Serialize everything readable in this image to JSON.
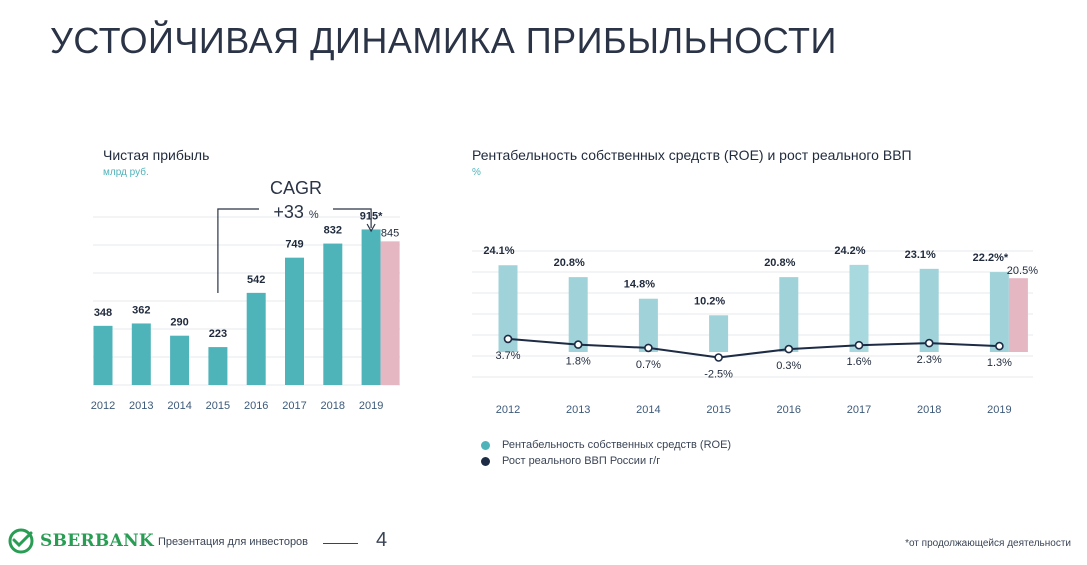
{
  "slide": {
    "title": "УСТОЙЧИВАЯ ДИНАМИКА ПРИБЫЛЬНОСТИ",
    "footer": {
      "logo_text": "SBERBANK",
      "caption": "Презентация для инвесторов",
      "page_number": "4",
      "note": "*от продолжающейся деятельности"
    }
  },
  "colors": {
    "teal": "#4fb3ba",
    "teal_light": "#a8d9df",
    "pink": "#e4b7c3",
    "navy": "#1d2b45",
    "sber_green": "#2a9d55"
  },
  "chart_data": [
    {
      "type": "bar",
      "title": "Чистая прибыль",
      "unit": "млрд руб.",
      "categories": [
        "2012",
        "2013",
        "2014",
        "2015",
        "2016",
        "2017",
        "2018",
        "2019"
      ],
      "series": [
        {
          "values": [
            348,
            362,
            290,
            223,
            542,
            749,
            832,
            915
          ]
        }
      ],
      "value_labels": [
        "348",
        "362",
        "290",
        "223",
        "542",
        "749",
        "832",
        "915*"
      ],
      "extra_bar": {
        "category": "2019",
        "value": 845,
        "label": "845"
      },
      "annotation": {
        "line1": "CAGR",
        "line2": "+33",
        "unit": "%"
      },
      "ylim": [
        0,
        1000
      ],
      "grid": true
    },
    {
      "type": "bar",
      "title": "Рентабельность собственных средств (ROE) и рост реального ВВП",
      "unit": "%",
      "categories": [
        "2012",
        "2013",
        "2014",
        "2015",
        "2016",
        "2017",
        "2018",
        "2019"
      ],
      "series": [
        {
          "name": "Рентабельность собственных средств (ROE)",
          "type": "bar",
          "values": [
            24.1,
            20.8,
            14.8,
            10.2,
            20.8,
            24.2,
            23.1,
            22.2
          ],
          "labels": [
            "24.1%",
            "20.8%",
            "14.8%",
            "10.2%",
            "20.8%",
            "24.2%",
            "23.1%",
            "22.2%*"
          ]
        },
        {
          "name": "Рост реального ВВП России г/г",
          "type": "line",
          "values": [
            3.7,
            1.8,
            0.7,
            -2.5,
            0.3,
            1.6,
            2.3,
            1.3
          ],
          "labels": [
            "3.7%",
            "1.8%",
            "0.7%",
            "-2.5%",
            "0.3%",
            "1.6%",
            "2.3%",
            "1.3%"
          ]
        }
      ],
      "extra_bar": {
        "category": "2019",
        "value": 20.5,
        "label": "20.5%"
      },
      "ylim": [
        -4,
        28
      ],
      "grid": true,
      "legend": "bottom-left"
    }
  ]
}
